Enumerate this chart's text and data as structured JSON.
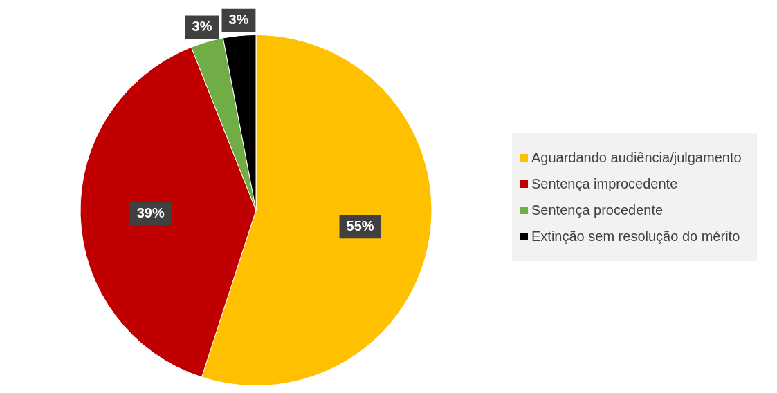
{
  "chart_data": {
    "type": "pie",
    "categories": [
      "Aguardando audiência/julgamento",
      "Sentença improcedente",
      "Sentença procedente",
      "Extinção sem resolução do mérito"
    ],
    "values": [
      55,
      39,
      3,
      3
    ],
    "colors": [
      "#ffc000",
      "#c00000",
      "#70ad47",
      "#000000"
    ],
    "value_labels": [
      "55%",
      "39%",
      "3%",
      "3%"
    ],
    "legend": "right"
  }
}
